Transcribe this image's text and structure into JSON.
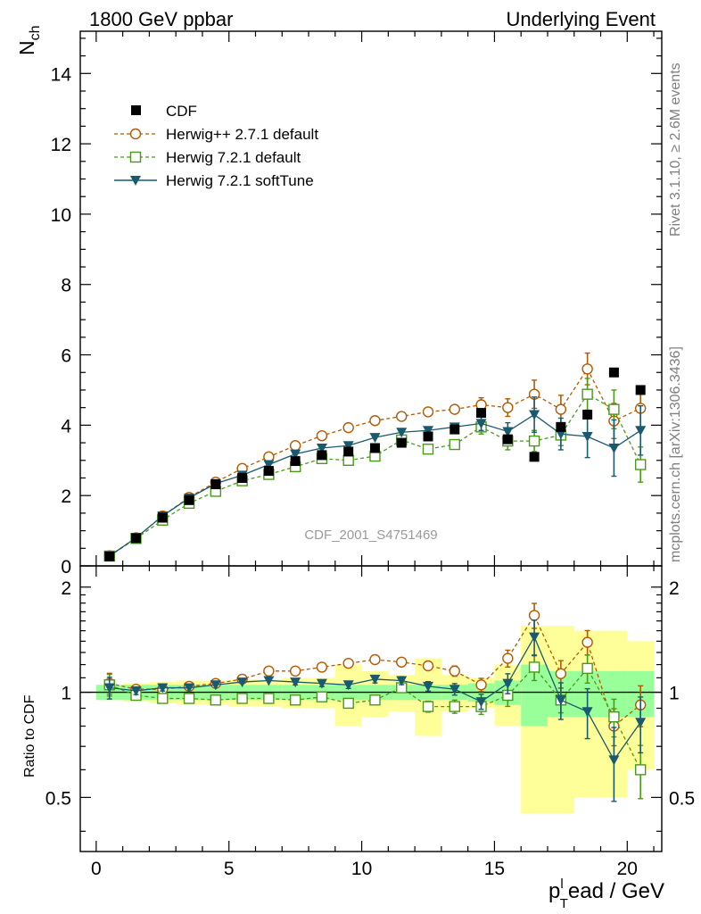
{
  "chart_data": {
    "type": "scatter",
    "title_left": "1800 GeV ppbar",
    "title_right": "Underlying Event",
    "watermark": "CDF_2001_S4751469",
    "side_label_top": "Rivet 3.1.10, ≥ 2.6M events",
    "side_label_bottom": "mcplots.cern.ch [arXiv:1306.3436]",
    "ylabel_main": "N",
    "ylabel_main_sub": "ch",
    "ylabel_ratio": "Ratio to CDF",
    "xlabel": "p",
    "xlabel_sub": "T",
    "xlabel_sup": "l",
    "xlabel_rest": "ead / GeV",
    "xlim": [
      -0.6,
      21.3
    ],
    "ylim_main": [
      0,
      15.2
    ],
    "ylim_ratio": [
      0.35,
      2.3
    ],
    "xticks": [
      0,
      5,
      10,
      15,
      20
    ],
    "yticks_main": [
      0,
      2,
      4,
      6,
      8,
      10,
      12,
      14
    ],
    "yticks_ratio": [
      0.5,
      1,
      2
    ],
    "legend": [
      "CDF",
      "Herwig++ 2.7.1 default",
      "Herwig 7.2.1 default",
      "Herwig 7.2.1 softTune"
    ],
    "x": [
      0.5,
      1.5,
      2.5,
      3.5,
      4.5,
      5.5,
      6.5,
      7.5,
      8.5,
      9.5,
      10.5,
      11.5,
      12.5,
      13.5,
      14.5,
      15.5,
      16.5,
      17.5,
      18.5,
      19.5,
      20.5
    ],
    "data": {
      "name": "CDF",
      "values": [
        0.27,
        0.79,
        1.37,
        1.87,
        2.32,
        2.5,
        2.7,
        2.98,
        3.15,
        3.25,
        3.35,
        3.5,
        3.68,
        3.88,
        4.35,
        3.6,
        3.1,
        3.95,
        4.3,
        5.5,
        5.0
      ],
      "ratio_band_inner": [
        0.05,
        0.05,
        0.05,
        0.05,
        0.05,
        0.05,
        0.05,
        0.05,
        0.05,
        0.05,
        0.05,
        0.05,
        0.05,
        0.05,
        0.06,
        0.08,
        0.2,
        0.15,
        0.15,
        0.15,
        0.15
      ],
      "ratio_band_outer": [
        0.05,
        0.06,
        0.07,
        0.08,
        0.08,
        0.09,
        0.09,
        0.1,
        0.1,
        0.2,
        0.15,
        0.12,
        0.25,
        0.12,
        0.1,
        0.2,
        0.55,
        0.55,
        0.5,
        0.5,
        0.4
      ]
    },
    "series": [
      {
        "name": "Herwig++ 2.7.1 default",
        "color": "#b35a00",
        "marker": "circle",
        "dashed": true,
        "values": [
          0.29,
          0.8,
          1.42,
          1.95,
          2.38,
          2.77,
          3.1,
          3.42,
          3.7,
          3.93,
          4.13,
          4.25,
          4.38,
          4.45,
          4.58,
          4.5,
          4.88,
          4.45,
          5.6,
          4.12,
          4.48
        ],
        "errors": [
          0.02,
          0.02,
          0.03,
          0.03,
          0.03,
          0.04,
          0.05,
          0.06,
          0.07,
          0.08,
          0.09,
          0.1,
          0.12,
          0.15,
          0.2,
          0.25,
          0.4,
          0.4,
          0.45,
          0.5,
          0.6
        ],
        "ratio": [
          1.06,
          1.02,
          1.02,
          1.04,
          1.06,
          1.09,
          1.15,
          1.15,
          1.18,
          1.21,
          1.24,
          1.22,
          1.19,
          1.15,
          1.05,
          1.25,
          1.66,
          1.13,
          1.39,
          0.8,
          0.92
        ]
      },
      {
        "name": "Herwig 7.2.1 default",
        "color": "#4a9a1a",
        "marker": "square",
        "dashed": true,
        "values": [
          0.28,
          0.78,
          1.3,
          1.78,
          2.12,
          2.42,
          2.6,
          2.82,
          3.05,
          3.0,
          3.12,
          3.58,
          3.32,
          3.45,
          3.95,
          3.55,
          3.55,
          3.72,
          4.88,
          4.45,
          2.88
        ],
        "errors": [
          0.02,
          0.02,
          0.03,
          0.03,
          0.03,
          0.04,
          0.05,
          0.06,
          0.07,
          0.08,
          0.09,
          0.1,
          0.12,
          0.15,
          0.2,
          0.25,
          0.3,
          0.3,
          0.45,
          0.55,
          0.5
        ],
        "ratio": [
          1.05,
          0.98,
          0.96,
          0.96,
          0.95,
          0.96,
          0.96,
          0.95,
          0.97,
          0.93,
          0.95,
          1.03,
          0.91,
          0.91,
          0.91,
          0.98,
          1.18,
          0.95,
          1.17,
          0.85,
          0.6
        ]
      },
      {
        "name": "Herwig 7.2.1 softTune",
        "color": "#1a5a6e",
        "marker": "triangle-down",
        "dashed": false,
        "values": [
          0.28,
          0.8,
          1.42,
          1.93,
          2.34,
          2.58,
          2.88,
          3.18,
          3.35,
          3.42,
          3.65,
          3.8,
          3.85,
          3.95,
          4.05,
          3.82,
          4.3,
          3.75,
          3.68,
          3.35,
          3.85
        ],
        "errors": [
          0.02,
          0.02,
          0.03,
          0.03,
          0.03,
          0.04,
          0.05,
          0.06,
          0.07,
          0.08,
          0.09,
          0.1,
          0.12,
          0.15,
          0.2,
          0.25,
          0.5,
          0.45,
          0.6,
          0.8,
          0.7
        ],
        "ratio": [
          1.03,
          1.01,
          1.03,
          1.03,
          1.05,
          1.07,
          1.08,
          1.07,
          1.06,
          1.05,
          1.09,
          1.08,
          1.04,
          1.02,
          0.94,
          1.06,
          1.44,
          0.95,
          0.88,
          0.64,
          0.82
        ]
      }
    ]
  }
}
